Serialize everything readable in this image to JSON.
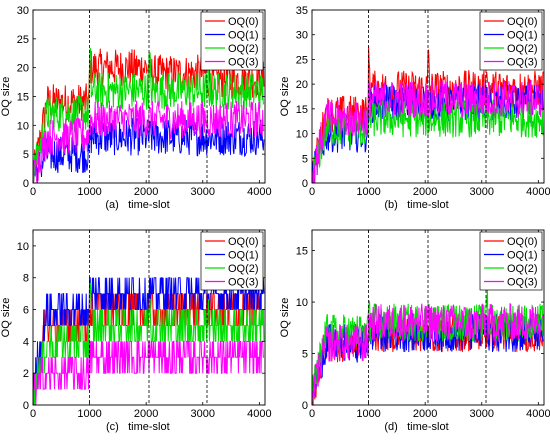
{
  "chart_data": [
    {
      "type": "line",
      "caption": "(a)",
      "xlabel": "time-slot",
      "ylabel": "OQ size",
      "xlim": [
        0,
        4100
      ],
      "ylim": [
        0,
        30
      ],
      "xticks": [
        0,
        1000,
        2000,
        3000,
        4000
      ],
      "yticks": [
        0,
        5,
        10,
        15,
        20,
        25,
        30
      ],
      "vlines": [
        1000,
        2050,
        3075
      ],
      "legend": "top-right",
      "series": [
        {
          "name": "OQ(0)",
          "color": "#ff0000",
          "levels": [
            14,
            20,
            19,
            18
          ]
        },
        {
          "name": "OQ(1)",
          "color": "#0000ff",
          "levels": [
            5,
            8,
            8,
            8
          ]
        },
        {
          "name": "OQ(2)",
          "color": "#00dd00",
          "levels": [
            12,
            16,
            16,
            16
          ]
        },
        {
          "name": "OQ(3)",
          "color": "#ff00ff",
          "levels": [
            8,
            11,
            11,
            11
          ]
        }
      ]
    },
    {
      "type": "line",
      "caption": "(b)",
      "xlabel": "time-slot",
      "ylabel": "OQ size",
      "xlim": [
        0,
        4100
      ],
      "ylim": [
        0,
        35
      ],
      "xticks": [
        0,
        1000,
        2000,
        3000,
        4000
      ],
      "yticks": [
        0,
        5,
        10,
        15,
        20,
        25,
        30,
        35
      ],
      "vlines": [
        1000,
        2050,
        3075
      ],
      "legend": "top-right",
      "series": [
        {
          "name": "OQ(0)",
          "color": "#ff0000",
          "levels": [
            14,
            19,
            19,
            19
          ]
        },
        {
          "name": "OQ(1)",
          "color": "#0000ff",
          "levels": [
            10,
            16,
            16,
            16
          ]
        },
        {
          "name": "OQ(2)",
          "color": "#00dd00",
          "levels": [
            11,
            13,
            13,
            13
          ]
        },
        {
          "name": "OQ(3)",
          "color": "#ff00ff",
          "levels": [
            13,
            17,
            17,
            17
          ]
        }
      ]
    },
    {
      "type": "line",
      "caption": "(c)",
      "xlabel": "time-slot",
      "ylabel": "OQ size",
      "xlim": [
        0,
        4100
      ],
      "ylim": [
        0,
        11
      ],
      "xticks": [
        0,
        1000,
        2000,
        3000,
        4000
      ],
      "yticks": [
        0,
        2,
        4,
        6,
        8,
        10
      ],
      "vlines": [
        1000,
        2050,
        3075
      ],
      "legend": "top-right",
      "series": [
        {
          "name": "OQ(0)",
          "color": "#ff0000",
          "levels": [
            5,
            6,
            6,
            6
          ]
        },
        {
          "name": "OQ(1)",
          "color": "#0000ff",
          "levels": [
            6,
            7,
            7,
            7
          ]
        },
        {
          "name": "OQ(2)",
          "color": "#00dd00",
          "levels": [
            4,
            5,
            5,
            5
          ]
        },
        {
          "name": "OQ(3)",
          "color": "#ff00ff",
          "levels": [
            2,
            3,
            3,
            3
          ]
        }
      ]
    },
    {
      "type": "line",
      "caption": "(d)",
      "xlabel": "time-slot",
      "ylabel": "OQ size",
      "xlim": [
        0,
        4100
      ],
      "ylim": [
        0,
        17
      ],
      "xticks": [
        0,
        1000,
        2000,
        3000,
        4000
      ],
      "yticks": [
        0,
        5,
        10,
        15
      ],
      "vlines": [
        1000,
        2050,
        3075
      ],
      "legend": "top-right",
      "series": [
        {
          "name": "OQ(0)",
          "color": "#ff0000",
          "levels": [
            6,
            7,
            7,
            7
          ]
        },
        {
          "name": "OQ(1)",
          "color": "#0000ff",
          "levels": [
            6,
            7,
            7,
            7
          ]
        },
        {
          "name": "OQ(2)",
          "color": "#00dd00",
          "levels": [
            7,
            8,
            8,
            8
          ]
        },
        {
          "name": "OQ(3)",
          "color": "#ff00ff",
          "levels": [
            6,
            8,
            8,
            8
          ]
        }
      ]
    }
  ]
}
